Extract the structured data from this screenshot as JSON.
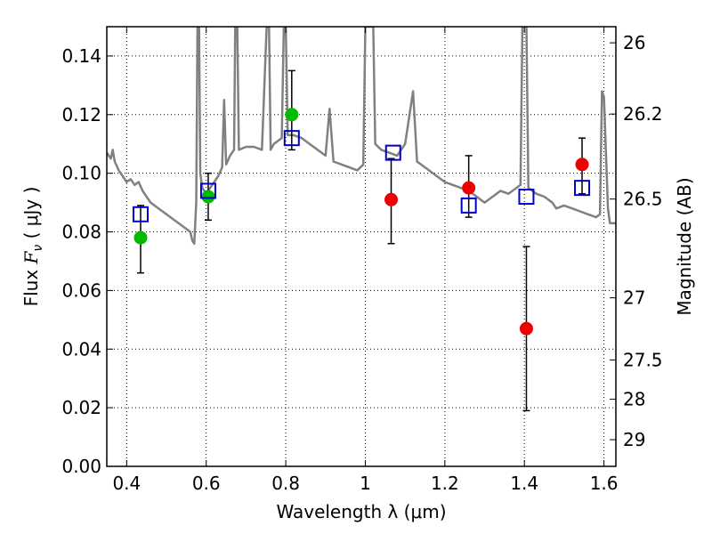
{
  "chart_data": {
    "type": "scatter",
    "xlabel": "Wavelength  λ (μm)",
    "ylabel": "Flux  F_ν  ( μJy )",
    "ylabel_parts": {
      "pre": "Flux  ",
      "var": "F",
      "sub": "ν",
      "post": "  ( μJy )"
    },
    "y2label": "Magnitude (AB)",
    "xlim": [
      0.35,
      1.63
    ],
    "ylim": [
      0.0,
      0.15
    ],
    "grid": true,
    "xticks": [
      {
        "v": 0.4,
        "label": "0.4"
      },
      {
        "v": 0.6,
        "label": "0.6"
      },
      {
        "v": 0.8,
        "label": "0.8"
      },
      {
        "v": 1.0,
        "label": "1"
      },
      {
        "v": 1.2,
        "label": "1.2"
      },
      {
        "v": 1.4,
        "label": "1.4"
      },
      {
        "v": 1.6,
        "label": "1.6"
      }
    ],
    "yticks": [
      {
        "v": 0.0,
        "label": "0.00"
      },
      {
        "v": 0.02,
        "label": "0.02"
      },
      {
        "v": 0.04,
        "label": "0.04"
      },
      {
        "v": 0.06,
        "label": "0.06"
      },
      {
        "v": 0.08,
        "label": "0.08"
      },
      {
        "v": 0.1,
        "label": "0.10"
      },
      {
        "v": 0.12,
        "label": "0.12"
      },
      {
        "v": 0.14,
        "label": "0.14"
      }
    ],
    "y2ticks": [
      {
        "flux": 0.1445,
        "label": "26"
      },
      {
        "flux": 0.1202,
        "label": "26.2"
      },
      {
        "flux": 0.0912,
        "label": "26.5"
      },
      {
        "flux": 0.0575,
        "label": "27"
      },
      {
        "flux": 0.0363,
        "label": "27.5"
      },
      {
        "flux": 0.0229,
        "label": "28"
      },
      {
        "flux": 0.0091,
        "label": "29"
      }
    ],
    "series": [
      {
        "kind": "line",
        "color": "#808080",
        "points": [
          [
            0.35,
            0.107
          ],
          [
            0.36,
            0.105
          ],
          [
            0.365,
            0.108
          ],
          [
            0.37,
            0.104
          ],
          [
            0.38,
            0.101
          ],
          [
            0.39,
            0.099
          ],
          [
            0.4,
            0.097
          ],
          [
            0.41,
            0.098
          ],
          [
            0.42,
            0.096
          ],
          [
            0.43,
            0.097
          ],
          [
            0.44,
            0.094
          ],
          [
            0.45,
            0.092
          ],
          [
            0.46,
            0.09
          ],
          [
            0.47,
            0.089
          ],
          [
            0.48,
            0.088
          ],
          [
            0.49,
            0.087
          ],
          [
            0.5,
            0.086
          ],
          [
            0.52,
            0.084
          ],
          [
            0.54,
            0.082
          ],
          [
            0.55,
            0.081
          ],
          [
            0.56,
            0.08
          ],
          [
            0.565,
            0.077
          ],
          [
            0.57,
            0.076
          ],
          [
            0.575,
            0.09
          ],
          [
            0.578,
            0.15
          ],
          [
            0.582,
            0.15
          ],
          [
            0.585,
            0.1
          ],
          [
            0.59,
            0.095
          ],
          [
            0.6,
            0.093
          ],
          [
            0.61,
            0.095
          ],
          [
            0.62,
            0.097
          ],
          [
            0.63,
            0.099
          ],
          [
            0.64,
            0.102
          ],
          [
            0.645,
            0.125
          ],
          [
            0.65,
            0.103
          ],
          [
            0.66,
            0.106
          ],
          [
            0.67,
            0.108
          ],
          [
            0.673,
            0.15
          ],
          [
            0.678,
            0.15
          ],
          [
            0.682,
            0.108
          ],
          [
            0.7,
            0.109
          ],
          [
            0.72,
            0.109
          ],
          [
            0.74,
            0.108
          ],
          [
            0.752,
            0.15
          ],
          [
            0.758,
            0.15
          ],
          [
            0.762,
            0.108
          ],
          [
            0.77,
            0.11
          ],
          [
            0.78,
            0.111
          ],
          [
            0.79,
            0.112
          ],
          [
            0.795,
            0.15
          ],
          [
            0.8,
            0.15
          ],
          [
            0.805,
            0.113
          ],
          [
            0.82,
            0.113
          ],
          [
            0.84,
            0.112
          ],
          [
            0.86,
            0.11
          ],
          [
            0.88,
            0.108
          ],
          [
            0.9,
            0.106
          ],
          [
            0.91,
            0.122
          ],
          [
            0.92,
            0.104
          ],
          [
            0.94,
            0.103
          ],
          [
            0.96,
            0.102
          ],
          [
            0.98,
            0.101
          ],
          [
            0.995,
            0.103
          ],
          [
            1.0,
            0.15
          ],
          [
            1.006,
            0.15
          ],
          [
            1.012,
            0.15
          ],
          [
            1.02,
            0.15
          ],
          [
            1.025,
            0.11
          ],
          [
            1.04,
            0.108
          ],
          [
            1.06,
            0.107
          ],
          [
            1.08,
            0.106
          ],
          [
            1.1,
            0.11
          ],
          [
            1.12,
            0.128
          ],
          [
            1.13,
            0.104
          ],
          [
            1.14,
            0.103
          ],
          [
            1.16,
            0.101
          ],
          [
            1.18,
            0.099
          ],
          [
            1.2,
            0.097
          ],
          [
            1.22,
            0.096
          ],
          [
            1.24,
            0.095
          ],
          [
            1.26,
            0.094
          ],
          [
            1.28,
            0.092
          ],
          [
            1.3,
            0.09
          ],
          [
            1.32,
            0.092
          ],
          [
            1.34,
            0.094
          ],
          [
            1.36,
            0.093
          ],
          [
            1.38,
            0.095
          ],
          [
            1.39,
            0.096
          ],
          [
            1.395,
            0.15
          ],
          [
            1.405,
            0.15
          ],
          [
            1.41,
            0.095
          ],
          [
            1.43,
            0.093
          ],
          [
            1.45,
            0.092
          ],
          [
            1.47,
            0.09
          ],
          [
            1.48,
            0.088
          ],
          [
            1.5,
            0.089
          ],
          [
            1.52,
            0.088
          ],
          [
            1.54,
            0.087
          ],
          [
            1.56,
            0.086
          ],
          [
            1.58,
            0.085
          ],
          [
            1.59,
            0.086
          ],
          [
            1.595,
            0.128
          ],
          [
            1.6,
            0.126
          ],
          [
            1.61,
            0.088
          ],
          [
            1.615,
            0.083
          ],
          [
            1.63,
            0.083
          ]
        ]
      },
      {
        "kind": "errorbar",
        "color": "#000000",
        "points": [
          [
            0.435,
            0.066,
            0.089
          ],
          [
            0.605,
            0.084,
            0.1
          ],
          [
            0.815,
            0.108,
            0.135
          ],
          [
            1.065,
            0.076,
            0.105
          ],
          [
            1.26,
            0.085,
            0.106
          ],
          [
            1.405,
            0.019,
            0.075
          ],
          [
            1.545,
            0.093,
            0.112
          ]
        ]
      },
      {
        "kind": "marker",
        "marker": "circle",
        "color": "#00bb00",
        "points": [
          [
            0.435,
            0.078
          ],
          [
            0.605,
            0.092
          ],
          [
            0.815,
            0.12
          ]
        ]
      },
      {
        "kind": "marker",
        "marker": "circle",
        "color": "#ee0000",
        "points": [
          [
            1.065,
            0.091
          ],
          [
            1.26,
            0.095
          ],
          [
            1.405,
            0.047
          ],
          [
            1.545,
            0.103
          ]
        ]
      },
      {
        "kind": "marker",
        "marker": "square",
        "color": "#0000cc",
        "points": [
          [
            0.435,
            0.086
          ],
          [
            0.605,
            0.094
          ],
          [
            0.815,
            0.112
          ],
          [
            1.07,
            0.107
          ],
          [
            1.26,
            0.089
          ],
          [
            1.405,
            0.092
          ],
          [
            1.545,
            0.095
          ]
        ]
      }
    ]
  }
}
